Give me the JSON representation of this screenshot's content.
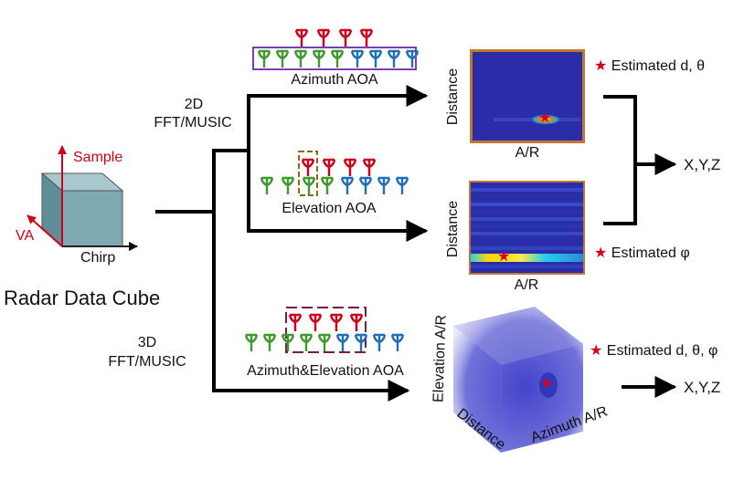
{
  "cube": {
    "title": "Radar Data Cube",
    "axis_sample": "Sample",
    "axis_va": "VA",
    "axis_chirp": "Chirp"
  },
  "branches": {
    "fft2d_line1": "2D",
    "fft2d_line2": "FFT/MUSIC",
    "fft3d_line1": "3D",
    "fft3d_line2": "FFT/MUSIC"
  },
  "arrays": {
    "azimuth_label": "Azimuth AOA",
    "elevation_label": "Elevation AOA",
    "joint_label": "Azimuth&Elevation AOA"
  },
  "heatmaps": {
    "azimuth": {
      "ylabel": "Distance",
      "xlabel": "A/R"
    },
    "elevation": {
      "ylabel": "Distance",
      "xlabel": "A/R"
    },
    "cube3d": {
      "label_left": "Elevation A/R",
      "label_bottom_left": "Distance",
      "label_bottom_right": "Azimuth A/R"
    }
  },
  "outputs": {
    "estimated_d_theta": "Estimated d, θ",
    "estimated_phi": "Estimated φ",
    "estimated_all": "Estimated d, θ, φ",
    "xyz_top": "X,Y,Z",
    "xyz_bottom": "X,Y,Z",
    "star_glyph": "★"
  },
  "colors": {
    "rx_green": "#3f9a2e",
    "rx_blue": "#1f6fb8",
    "tx_red": "#d4001a",
    "heatmap_border": "#c0782f",
    "heatmap_bg": "#2a2ca8",
    "cube_face": "#7fa9b3"
  }
}
